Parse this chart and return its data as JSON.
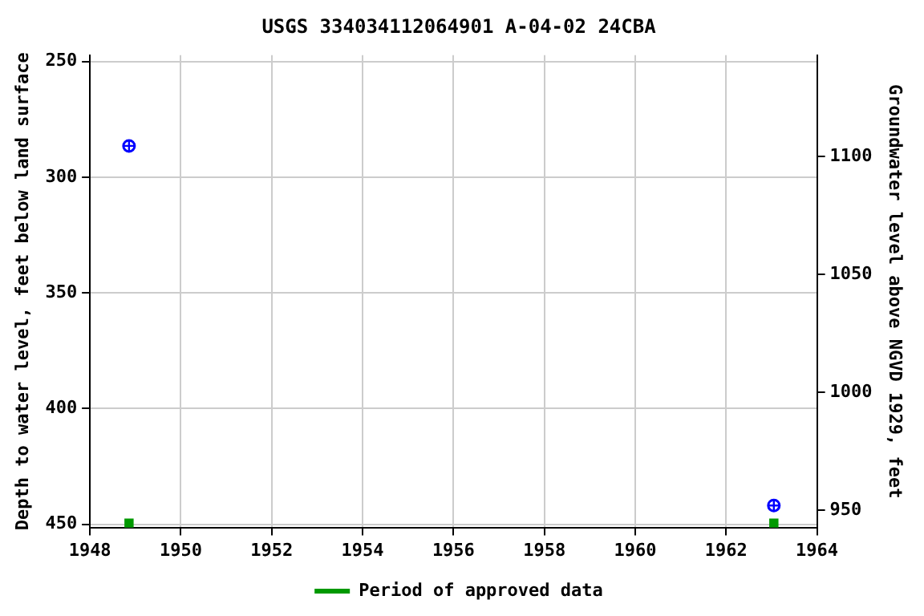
{
  "chart_data": {
    "type": "scatter",
    "title": "USGS 334034112064901 A-04-02 24CBA",
    "ylabel": "Depth to water level, feet below land surface",
    "y2label": "Groundwater level above NGVD 1929, feet",
    "series": [
      {
        "color": "#0000ff",
        "marker": "circle",
        "values": [
          286.5,
          441.9
        ]
      },
      {
        "name": "Period of approved data",
        "color": "#009900",
        "marker": "square",
        "values": [
          449.5,
          449.5
        ]
      }
    ],
    "x": [
      1948.86,
      1963.05
    ],
    "xlim": [
      1948,
      1964
    ],
    "xticks": [
      1948,
      1950,
      1952,
      1954,
      1956,
      1958,
      1960,
      1962,
      1964
    ],
    "ylim": [
      451.4,
      247.3
    ],
    "yticks": [
      250,
      300,
      350,
      400,
      450
    ],
    "y2lim": [
      942.7,
      1143.1
    ],
    "y2ticks": [
      950,
      1000,
      1050,
      1100
    ],
    "grid": true,
    "legend": "bottom"
  }
}
